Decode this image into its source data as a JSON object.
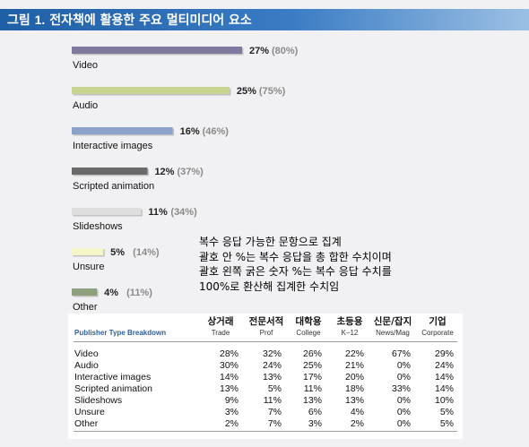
{
  "header": {
    "prefix": "그림 ",
    "number": "1.",
    "title": " 전자책에 활용한 주요 멀티미디어 요소"
  },
  "chart_data": {
    "type": "bar",
    "orientation": "horizontal",
    "categories": [
      "Video",
      "Audio",
      "Interactive images",
      "Scripted animation",
      "Slideshows",
      "Unsure",
      "Other"
    ],
    "values": [
      27,
      25,
      16,
      12,
      11,
      5,
      4
    ],
    "value_labels": [
      "27%",
      "25%",
      "16%",
      "12%",
      "11%",
      "5%",
      "4%"
    ],
    "secondary_labels": [
      "(80%)",
      "(75%)",
      "(46%)",
      "(37%)",
      "(34%)",
      "(14%)",
      "(11%)"
    ],
    "colors": [
      "#7d7a9e",
      "#c7d48f",
      "#8da2c8",
      "#6a6a6a",
      "#dedede",
      "#f5f5c9",
      "#8fa07e"
    ],
    "xlim": [
      0,
      27
    ]
  },
  "note": {
    "lines": [
      "복수 응답 가능한 문항으로 집계",
      "괄호 안 %는 복수 응답을 총 합한 수치이며",
      "괄호 왼쪽 굵은 숫자 %는 복수 응답 수치를",
      "100%로 환산해 집계한 수치임"
    ]
  },
  "breakdown": {
    "title": "Publisher Type Breakdown",
    "korean_headers": [
      "상거래",
      "전문서적",
      "대학용",
      "초등용",
      "신문/잡지",
      "기업"
    ],
    "english_headers": [
      "Trade",
      "Prof",
      "College",
      "K–12",
      "News/Mag",
      "Corporate"
    ],
    "rows": [
      {
        "label": "Video",
        "values": [
          "28%",
          "32%",
          "26%",
          "22%",
          "67%",
          "29%"
        ]
      },
      {
        "label": "Audio",
        "values": [
          "30%",
          "24%",
          "25%",
          "21%",
          "0%",
          "24%"
        ]
      },
      {
        "label": "Interactive images",
        "values": [
          "14%",
          "13%",
          "17%",
          "20%",
          "0%",
          "14%"
        ]
      },
      {
        "label": "Scripted animation",
        "values": [
          "13%",
          "5%",
          "11%",
          "18%",
          "33%",
          "14%"
        ]
      },
      {
        "label": "Slideshows",
        "values": [
          "9%",
          "11%",
          "13%",
          "13%",
          "0%",
          "10%"
        ]
      },
      {
        "label": "Unsure",
        "values": [
          "3%",
          "7%",
          "6%",
          "4%",
          "0%",
          "5%"
        ]
      },
      {
        "label": "Other",
        "values": [
          "2%",
          "7%",
          "3%",
          "2%",
          "0%",
          "5%"
        ]
      }
    ]
  }
}
